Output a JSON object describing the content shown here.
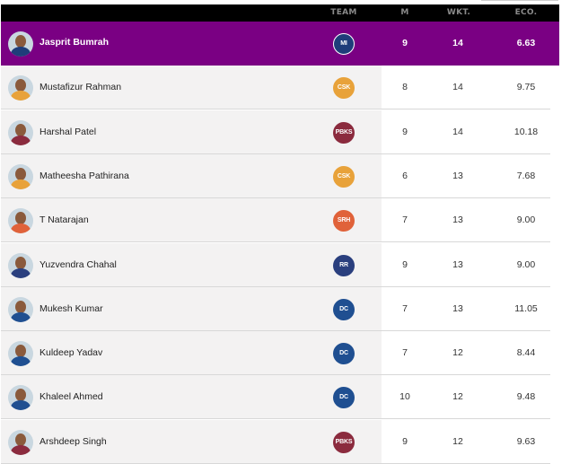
{
  "header": {
    "team": "TEAM",
    "matches": "M",
    "wickets": "WKT.",
    "economy": "ECO."
  },
  "rows": [
    {
      "name": "Jasprit Bumrah",
      "team": "MI",
      "team_color": "#1f3d7a",
      "m": "9",
      "wkt": "14",
      "eco": "6.63",
      "leader": true
    },
    {
      "name": "Mustafizur Rahman",
      "team": "CSK",
      "team_color": "#e8a23a",
      "m": "8",
      "wkt": "14",
      "eco": "9.75"
    },
    {
      "name": "Harshal Patel",
      "team": "PBKS",
      "team_color": "#8b2b3e",
      "m": "9",
      "wkt": "14",
      "eco": "10.18"
    },
    {
      "name": "Matheesha Pathirana",
      "team": "CSK",
      "team_color": "#e8a23a",
      "m": "6",
      "wkt": "13",
      "eco": "7.68"
    },
    {
      "name": "T Natarajan",
      "team": "SRH",
      "team_color": "#e0623a",
      "m": "7",
      "wkt": "13",
      "eco": "9.00"
    },
    {
      "name": "Yuzvendra Chahal",
      "team": "RR",
      "team_color": "#2a3f7e",
      "m": "9",
      "wkt": "13",
      "eco": "9.00"
    },
    {
      "name": "Mukesh Kumar",
      "team": "DC",
      "team_color": "#1f4f91",
      "m": "7",
      "wkt": "13",
      "eco": "11.05"
    },
    {
      "name": "Kuldeep Yadav",
      "team": "DC",
      "team_color": "#1f4f91",
      "m": "7",
      "wkt": "12",
      "eco": "8.44"
    },
    {
      "name": "Khaleel Ahmed",
      "team": "DC",
      "team_color": "#1f4f91",
      "m": "10",
      "wkt": "12",
      "eco": "9.48"
    },
    {
      "name": "Arshdeep Singh",
      "team": "PBKS",
      "team_color": "#8b2b3e",
      "m": "9",
      "wkt": "12",
      "eco": "9.63"
    }
  ],
  "colors": {
    "leader_bg": "#7a0083",
    "header_bg": "#000000"
  }
}
